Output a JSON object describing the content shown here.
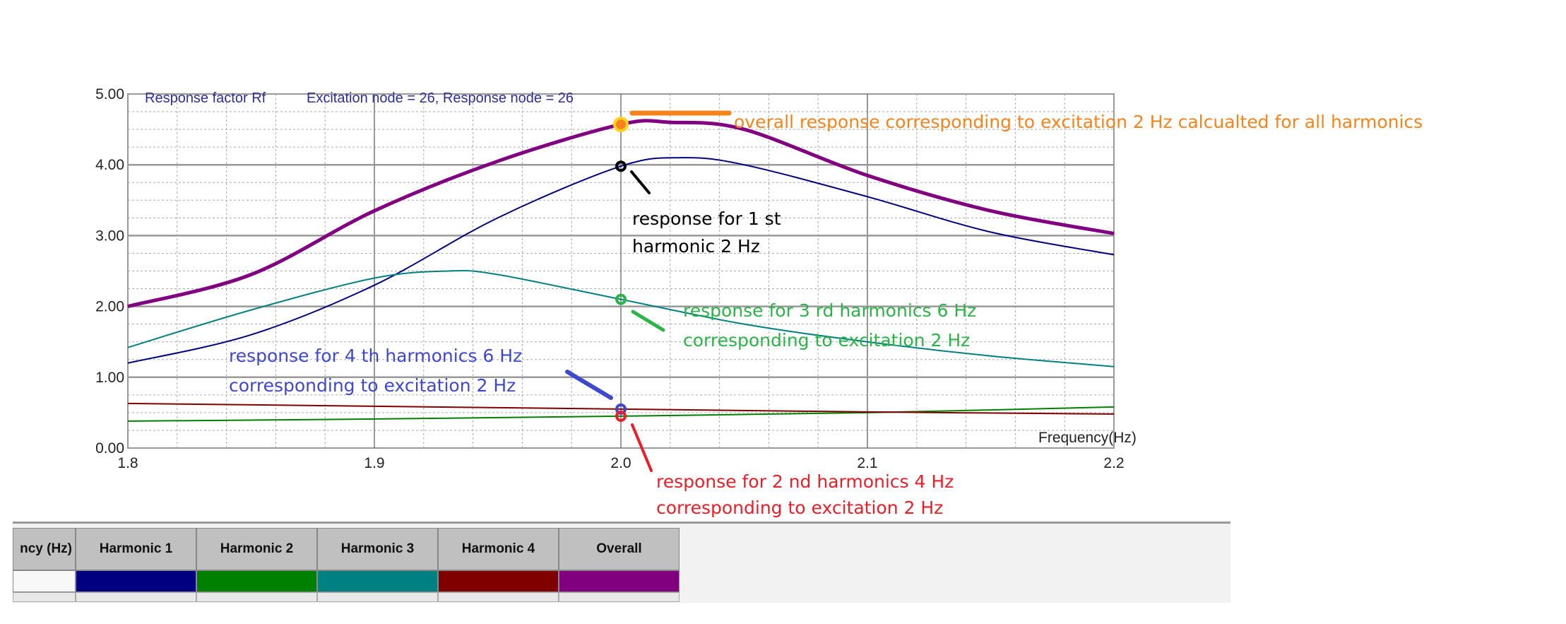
{
  "chart_data": {
    "type": "line",
    "title": "Response factor Rf",
    "subtitle": "Excitation node = 26, Response node = 26",
    "xlabel": "Frequency(Hz)",
    "ylabel": "",
    "xlim": [
      1.8,
      2.2
    ],
    "ylim": [
      0,
      5
    ],
    "xticks": [
      "1.8",
      "1.9",
      "2.0",
      "2.1",
      "2.2"
    ],
    "yticks": [
      "0.00",
      "1.00",
      "2.00",
      "3.00",
      "4.00",
      "5.00"
    ],
    "grid": true,
    "series": [
      {
        "name": "Harmonic 1",
        "color": "#000080",
        "x": [
          1.8,
          1.85,
          1.9,
          1.95,
          2.0,
          2.025,
          2.05,
          2.1,
          2.15,
          2.2
        ],
        "y": [
          1.2,
          1.6,
          2.3,
          3.25,
          3.98,
          4.1,
          4.0,
          3.55,
          3.05,
          2.73
        ]
      },
      {
        "name": "Harmonic 2",
        "color": "#008000",
        "x": [
          1.8,
          1.9,
          2.0,
          2.1,
          2.2
        ],
        "y": [
          0.38,
          0.41,
          0.45,
          0.5,
          0.58
        ]
      },
      {
        "name": "Harmonic 3",
        "color": "#008080",
        "x": [
          1.8,
          1.85,
          1.9,
          1.93,
          1.95,
          2.0,
          2.05,
          2.1,
          2.15,
          2.2
        ],
        "y": [
          1.42,
          1.95,
          2.4,
          2.5,
          2.45,
          2.1,
          1.75,
          1.5,
          1.3,
          1.15
        ]
      },
      {
        "name": "Harmonic 4",
        "color": "#800000",
        "x": [
          1.8,
          1.9,
          2.0,
          2.1,
          2.2
        ],
        "y": [
          0.63,
          0.59,
          0.55,
          0.51,
          0.48
        ]
      },
      {
        "name": "Overall",
        "color": "#800080",
        "x": [
          1.8,
          1.85,
          1.9,
          1.95,
          2.0,
          2.02,
          2.05,
          2.1,
          2.15,
          2.2
        ],
        "y": [
          2.0,
          2.45,
          3.35,
          4.05,
          4.57,
          4.6,
          4.5,
          3.85,
          3.35,
          3.03
        ]
      }
    ],
    "annotations": [
      {
        "text": [
          "overall response corresponding to excitation 2 Hz calcualted for all harmonics"
        ],
        "color": "#f5841f",
        "x": 2.0,
        "y": 4.57
      },
      {
        "text": [
          "response for 1 st",
          "harmonic 2 Hz"
        ],
        "color": "#000000",
        "x": 2.0,
        "y": 3.98
      },
      {
        "text": [
          "response for 3 rd harmonics 6 Hz",
          "corresponding to excitation 2 Hz"
        ],
        "color": "#2db34a",
        "x": 2.0,
        "y": 2.1
      },
      {
        "text": [
          "response for 4 th harmonics 6 Hz",
          "corresponding to excitation 2 Hz"
        ],
        "color": "#3f48cc",
        "x": 2.0,
        "y": 0.55
      },
      {
        "text": [
          "response for 2 nd harmonics 4 Hz",
          "corresponding to excitation 2 Hz"
        ],
        "color": "#e8202a",
        "x": 2.0,
        "y": 0.45
      }
    ]
  },
  "table": {
    "first_header": "ncy (Hz)",
    "columns": [
      {
        "label": "Harmonic 1",
        "color": "#000080"
      },
      {
        "label": "Harmonic 2",
        "color": "#008000"
      },
      {
        "label": "Harmonic 3",
        "color": "#008080"
      },
      {
        "label": "Harmonic 4",
        "color": "#800000"
      },
      {
        "label": "Overall",
        "color": "#800080"
      }
    ]
  }
}
